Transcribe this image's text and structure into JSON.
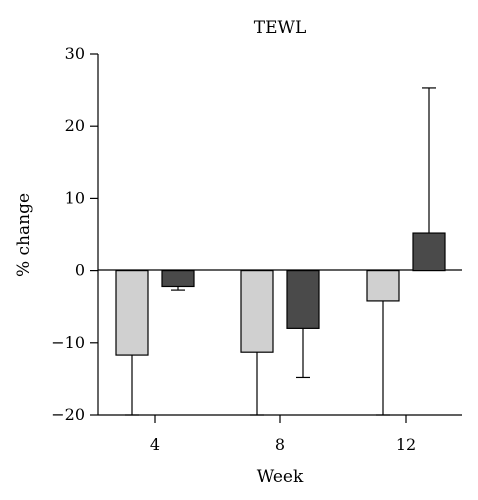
{
  "chart_data": {
    "type": "bar",
    "title": "TEWL",
    "xlabel": "Week",
    "ylabel": "% change",
    "categories": [
      "4",
      "8",
      "12"
    ],
    "ylim": [
      -20,
      30
    ],
    "yticks": [
      -20,
      -10,
      0,
      10,
      20,
      30
    ],
    "ytick_labels": [
      "−20",
      "−10",
      "0",
      "10",
      "20",
      "30"
    ],
    "grid": false,
    "legend": "none",
    "series": [
      {
        "color": "#d0d0d0",
        "values": [
          -11.7,
          -11.3,
          -4.2
        ],
        "error": [
          8.3,
          8.7,
          15.8
        ],
        "error_direction": "down"
      },
      {
        "color": "#4a4a4a",
        "values": [
          -2.2,
          -8.0,
          5.2
        ],
        "error": [
          0.5,
          6.8,
          20.1
        ],
        "error_direction": "away"
      }
    ]
  }
}
